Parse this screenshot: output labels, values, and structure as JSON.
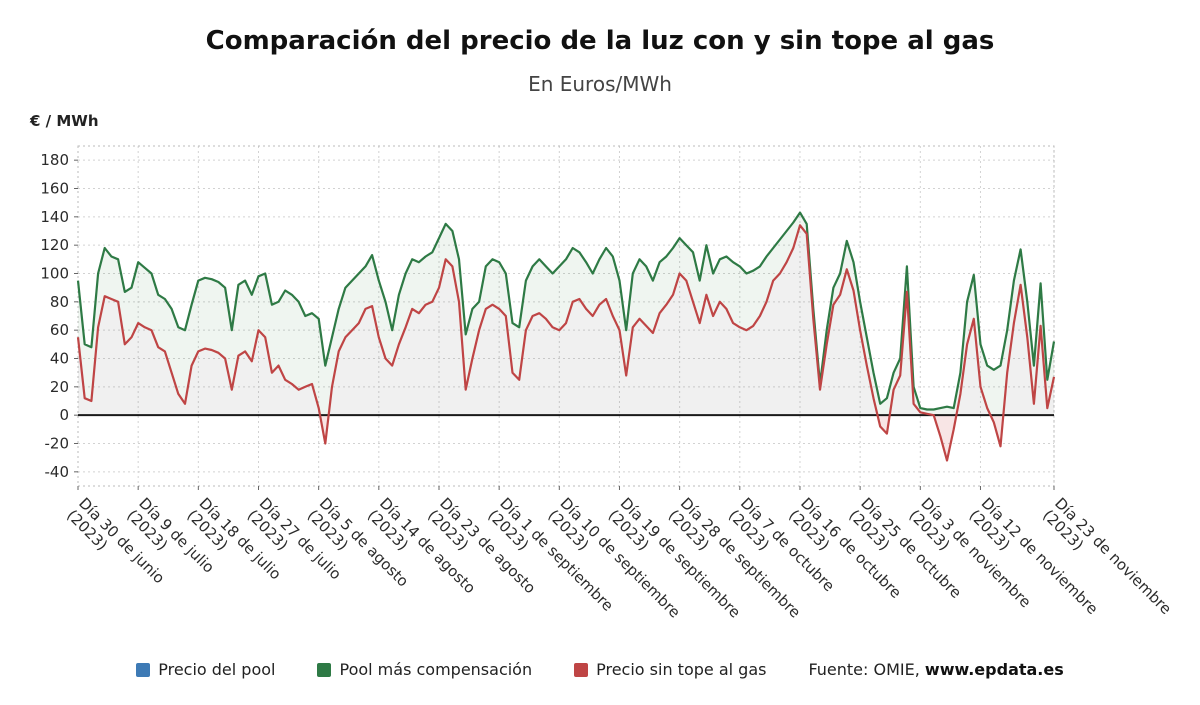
{
  "title": "Comparación del precio de la luz con y sin tope al gas",
  "subtitle": "En Euros/MWh",
  "y_axis_label": "€ / MWh",
  "legend": [
    {
      "label": "Precio del pool",
      "color": "#3d7ab5"
    },
    {
      "label": "Pool más compensación",
      "color": "#2e7a45"
    },
    {
      "label": "Precio sin tope al gas",
      "color": "#bf4545"
    }
  ],
  "source": {
    "prefix": "Fuente: OMIE, ",
    "site": "www.epdata.es"
  },
  "chart_data": {
    "type": "line",
    "title": "Comparación del precio de la luz con y sin tope al gas",
    "subtitle": "En Euros/MWh",
    "ylabel": "€ / MWh",
    "ylim": [
      -50,
      190
    ],
    "yticks": [
      -40,
      -20,
      0,
      20,
      40,
      60,
      80,
      100,
      120,
      140,
      160,
      180
    ],
    "grid": true,
    "legend_position": "bottom",
    "n_points": 147,
    "x_ticks": [
      {
        "i": 0,
        "l1": "Día 30 de junio",
        "l2": "(2023)"
      },
      {
        "i": 9,
        "l1": "Día 9 de julio",
        "l2": "(2023)"
      },
      {
        "i": 18,
        "l1": "Día 18 de julio",
        "l2": "(2023)"
      },
      {
        "i": 27,
        "l1": "Día 27 de julio",
        "l2": "(2023)"
      },
      {
        "i": 36,
        "l1": "Día 5 de agosto",
        "l2": "(2023)"
      },
      {
        "i": 45,
        "l1": "Día 14 de agosto",
        "l2": "(2023)"
      },
      {
        "i": 54,
        "l1": "Día 23 de agosto",
        "l2": "(2023)"
      },
      {
        "i": 63,
        "l1": "Día 1 de septiembre",
        "l2": "(2023)"
      },
      {
        "i": 72,
        "l1": "Día 10 de septiembre",
        "l2": "(2023)"
      },
      {
        "i": 81,
        "l1": "Día 19 de septiembre",
        "l2": "(2023)"
      },
      {
        "i": 90,
        "l1": "Día 28 de septiembre",
        "l2": "(2023)"
      },
      {
        "i": 99,
        "l1": "Día 7 de octubre",
        "l2": "(2023)"
      },
      {
        "i": 108,
        "l1": "Día 16 de octubre",
        "l2": "(2023)"
      },
      {
        "i": 117,
        "l1": "Día 25 de octubre",
        "l2": "(2023)"
      },
      {
        "i": 126,
        "l1": "Día 3 de noviembre",
        "l2": "(2023)"
      },
      {
        "i": 135,
        "l1": "Día 12 de noviembre",
        "l2": "(2023)"
      },
      {
        "i": 146,
        "l1": "Día 23 de noviembre",
        "l2": "(2023)"
      }
    ],
    "series": [
      {
        "name": "Pool más compensación",
        "color": "#2e7a45",
        "values": [
          95,
          50,
          48,
          100,
          118,
          112,
          110,
          87,
          90,
          108,
          104,
          100,
          85,
          82,
          75,
          62,
          60,
          78,
          95,
          97,
          96,
          94,
          90,
          60,
          92,
          95,
          85,
          98,
          100,
          78,
          80,
          88,
          85,
          80,
          70,
          72,
          68,
          35,
          55,
          75,
          90,
          95,
          100,
          105,
          113,
          95,
          80,
          60,
          85,
          100,
          110,
          108,
          112,
          115,
          125,
          135,
          130,
          110,
          57,
          75,
          80,
          105,
          110,
          108,
          100,
          65,
          62,
          95,
          105,
          110,
          105,
          100,
          105,
          110,
          118,
          115,
          108,
          100,
          110,
          118,
          112,
          95,
          60,
          100,
          110,
          105,
          95,
          108,
          112,
          118,
          125,
          120,
          115,
          95,
          120,
          100,
          110,
          112,
          108,
          105,
          100,
          102,
          105,
          112,
          118,
          124,
          130,
          136,
          143,
          135,
          75,
          22,
          60,
          90,
          100,
          123,
          108,
          80,
          55,
          30,
          8,
          12,
          30,
          40,
          105,
          20,
          5,
          4,
          4,
          5,
          6,
          5,
          30,
          80,
          99,
          50,
          35,
          32,
          35,
          60,
          95,
          117,
          80,
          35,
          93,
          25,
          52
        ]
      },
      {
        "name": "Precio sin tope al gas",
        "color": "#bf4545",
        "values": [
          55,
          12,
          10,
          62,
          84,
          82,
          80,
          50,
          55,
          65,
          62,
          60,
          48,
          45,
          30,
          15,
          8,
          35,
          45,
          47,
          46,
          44,
          40,
          18,
          42,
          45,
          38,
          60,
          55,
          30,
          35,
          25,
          22,
          18,
          20,
          22,
          5,
          -20,
          20,
          45,
          55,
          60,
          65,
          75,
          77,
          55,
          40,
          35,
          50,
          62,
          75,
          72,
          78,
          80,
          90,
          110,
          105,
          80,
          18,
          40,
          60,
          75,
          78,
          75,
          70,
          30,
          25,
          60,
          70,
          72,
          68,
          62,
          60,
          65,
          80,
          82,
          75,
          70,
          78,
          82,
          70,
          60,
          28,
          62,
          68,
          63,
          58,
          72,
          78,
          85,
          100,
          95,
          80,
          65,
          85,
          70,
          80,
          75,
          65,
          62,
          60,
          63,
          70,
          80,
          95,
          100,
          108,
          118,
          134,
          128,
          68,
          18,
          50,
          78,
          85,
          103,
          88,
          60,
          35,
          12,
          -8,
          -13,
          18,
          28,
          87,
          8,
          2,
          1,
          0,
          -15,
          -32,
          -10,
          15,
          50,
          68,
          20,
          5,
          -5,
          -22,
          30,
          65,
          92,
          55,
          8,
          63,
          5,
          27
        ]
      }
    ]
  }
}
